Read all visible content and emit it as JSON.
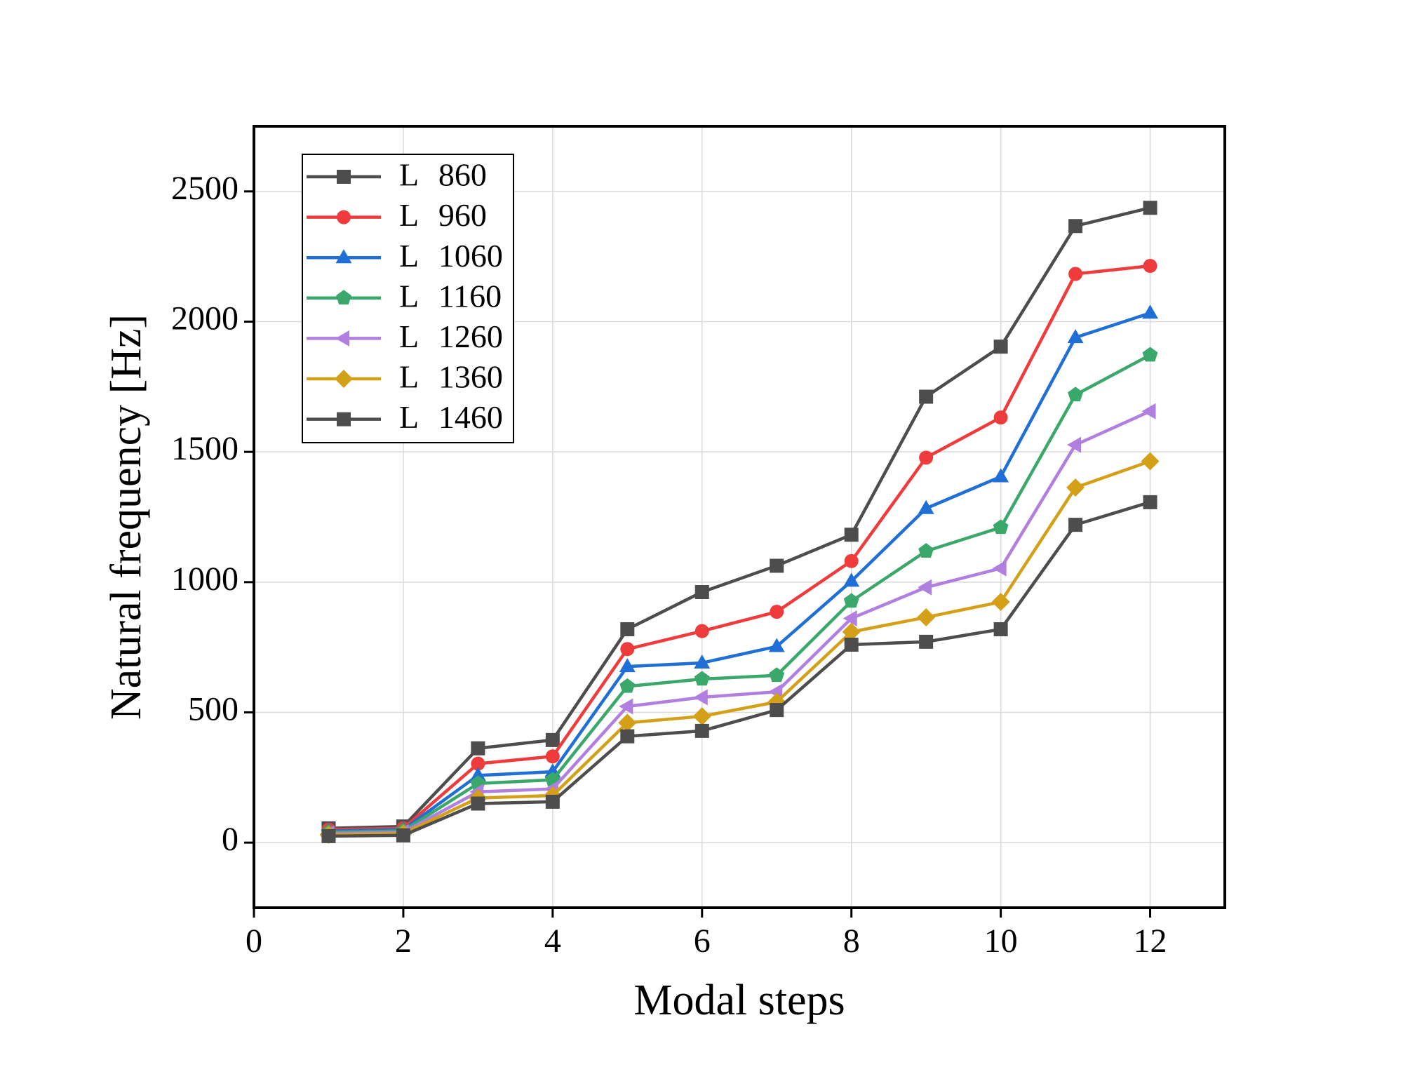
{
  "chart_data": {
    "type": "line",
    "x_label": "Modal steps",
    "y_label": "Natural frequency [Hz]",
    "x": [
      1,
      2,
      3,
      4,
      5,
      6,
      7,
      8,
      9,
      10,
      11,
      12
    ],
    "xlim": [
      0,
      13
    ],
    "xticks": [
      0,
      2,
      4,
      6,
      8,
      10,
      12
    ],
    "ylim": [
      -250,
      2750
    ],
    "yticks": [
      0,
      500,
      1000,
      1500,
      2000,
      2500
    ],
    "grid": true,
    "legend": "upper left",
    "series": [
      {
        "name": "L 860",
        "color": "#4d4d4d",
        "marker": "square",
        "values": [
          55,
          62,
          362,
          394,
          819,
          962,
          1063,
          1182,
          1712,
          1904,
          2367,
          2437
        ]
      },
      {
        "name": "L 960",
        "color": "#ef3b3b",
        "marker": "circle",
        "values": [
          50,
          55,
          303,
          331,
          743,
          812,
          886,
          1081,
          1478,
          1632,
          2183,
          2214
        ]
      },
      {
        "name": "L 1060",
        "color": "#1f6fd6",
        "marker": "triangle-up",
        "values": [
          45,
          50,
          258,
          272,
          676,
          690,
          753,
          1004,
          1283,
          1405,
          1939,
          2033
        ]
      },
      {
        "name": "L 1160",
        "color": "#3aa86b",
        "marker": "pentagon",
        "values": [
          40,
          45,
          227,
          241,
          600,
          628,
          642,
          927,
          1119,
          1210,
          1719,
          1872
        ]
      },
      {
        "name": "L 1260",
        "color": "#b07fe0",
        "marker": "triangle-left",
        "values": [
          35,
          40,
          195,
          206,
          523,
          558,
          579,
          861,
          980,
          1053,
          1527,
          1656
        ]
      },
      {
        "name": "L 1360",
        "color": "#d4a017",
        "marker": "diamond",
        "values": [
          30,
          35,
          171,
          181,
          460,
          485,
          540,
          809,
          865,
          924,
          1363,
          1464
        ]
      },
      {
        "name": "L 1460",
        "color": "#4d4d4d",
        "marker": "square",
        "values": [
          25,
          28,
          150,
          157,
          408,
          429,
          509,
          760,
          771,
          819,
          1220,
          1307
        ]
      }
    ]
  }
}
